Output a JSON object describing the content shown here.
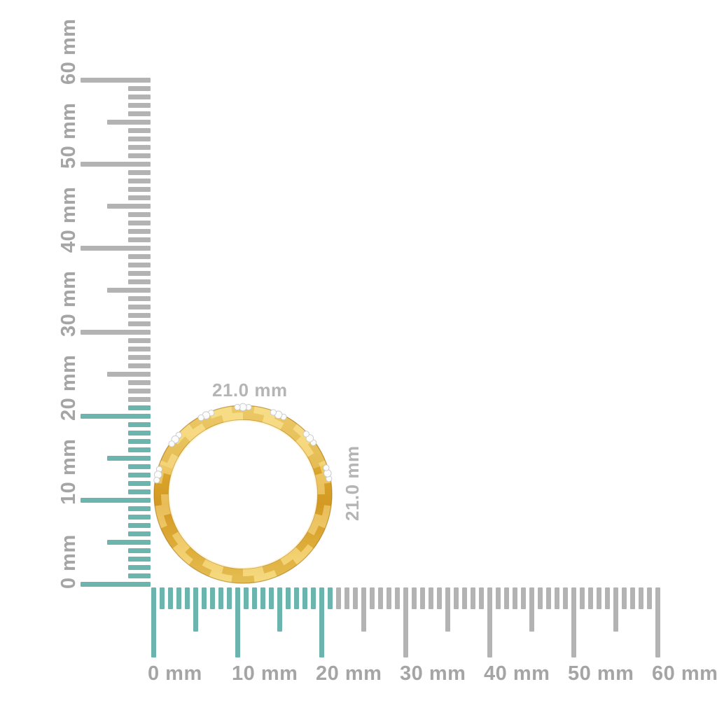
{
  "canvas": {
    "background": "#ffffff"
  },
  "measurement": {
    "width_label": "21.0 mm",
    "height_label": "21.0 mm"
  },
  "rulers": {
    "unit": "mm",
    "max": 60,
    "minor_step": 1,
    "mid_step": 5,
    "major_step": 10,
    "highlight_until": 21,
    "horizontal_labels": [
      "0 mm",
      "10 mm",
      "20 mm",
      "30 mm",
      "40 mm",
      "50 mm",
      "60 mm"
    ],
    "vertical_labels": [
      "0 mm",
      "10 mm",
      "20 mm",
      "30 mm",
      "40 mm",
      "50 mm",
      "60 mm"
    ],
    "colors": {
      "highlight_tick": "#6cb4ae",
      "tick": "#b3b3b3",
      "label": "#a5a5a5",
      "dimension_label": "#b5b5b5"
    }
  },
  "ring": {
    "band_colors": {
      "light": "#f6d86e",
      "base": "#e9b737",
      "dark": "#d99f22",
      "rim": "#b57f12"
    },
    "diamond_color": "#fbfbfb",
    "diamond_cluster_angles_deg": [
      14,
      40,
      66,
      90,
      115,
      141,
      167
    ]
  }
}
